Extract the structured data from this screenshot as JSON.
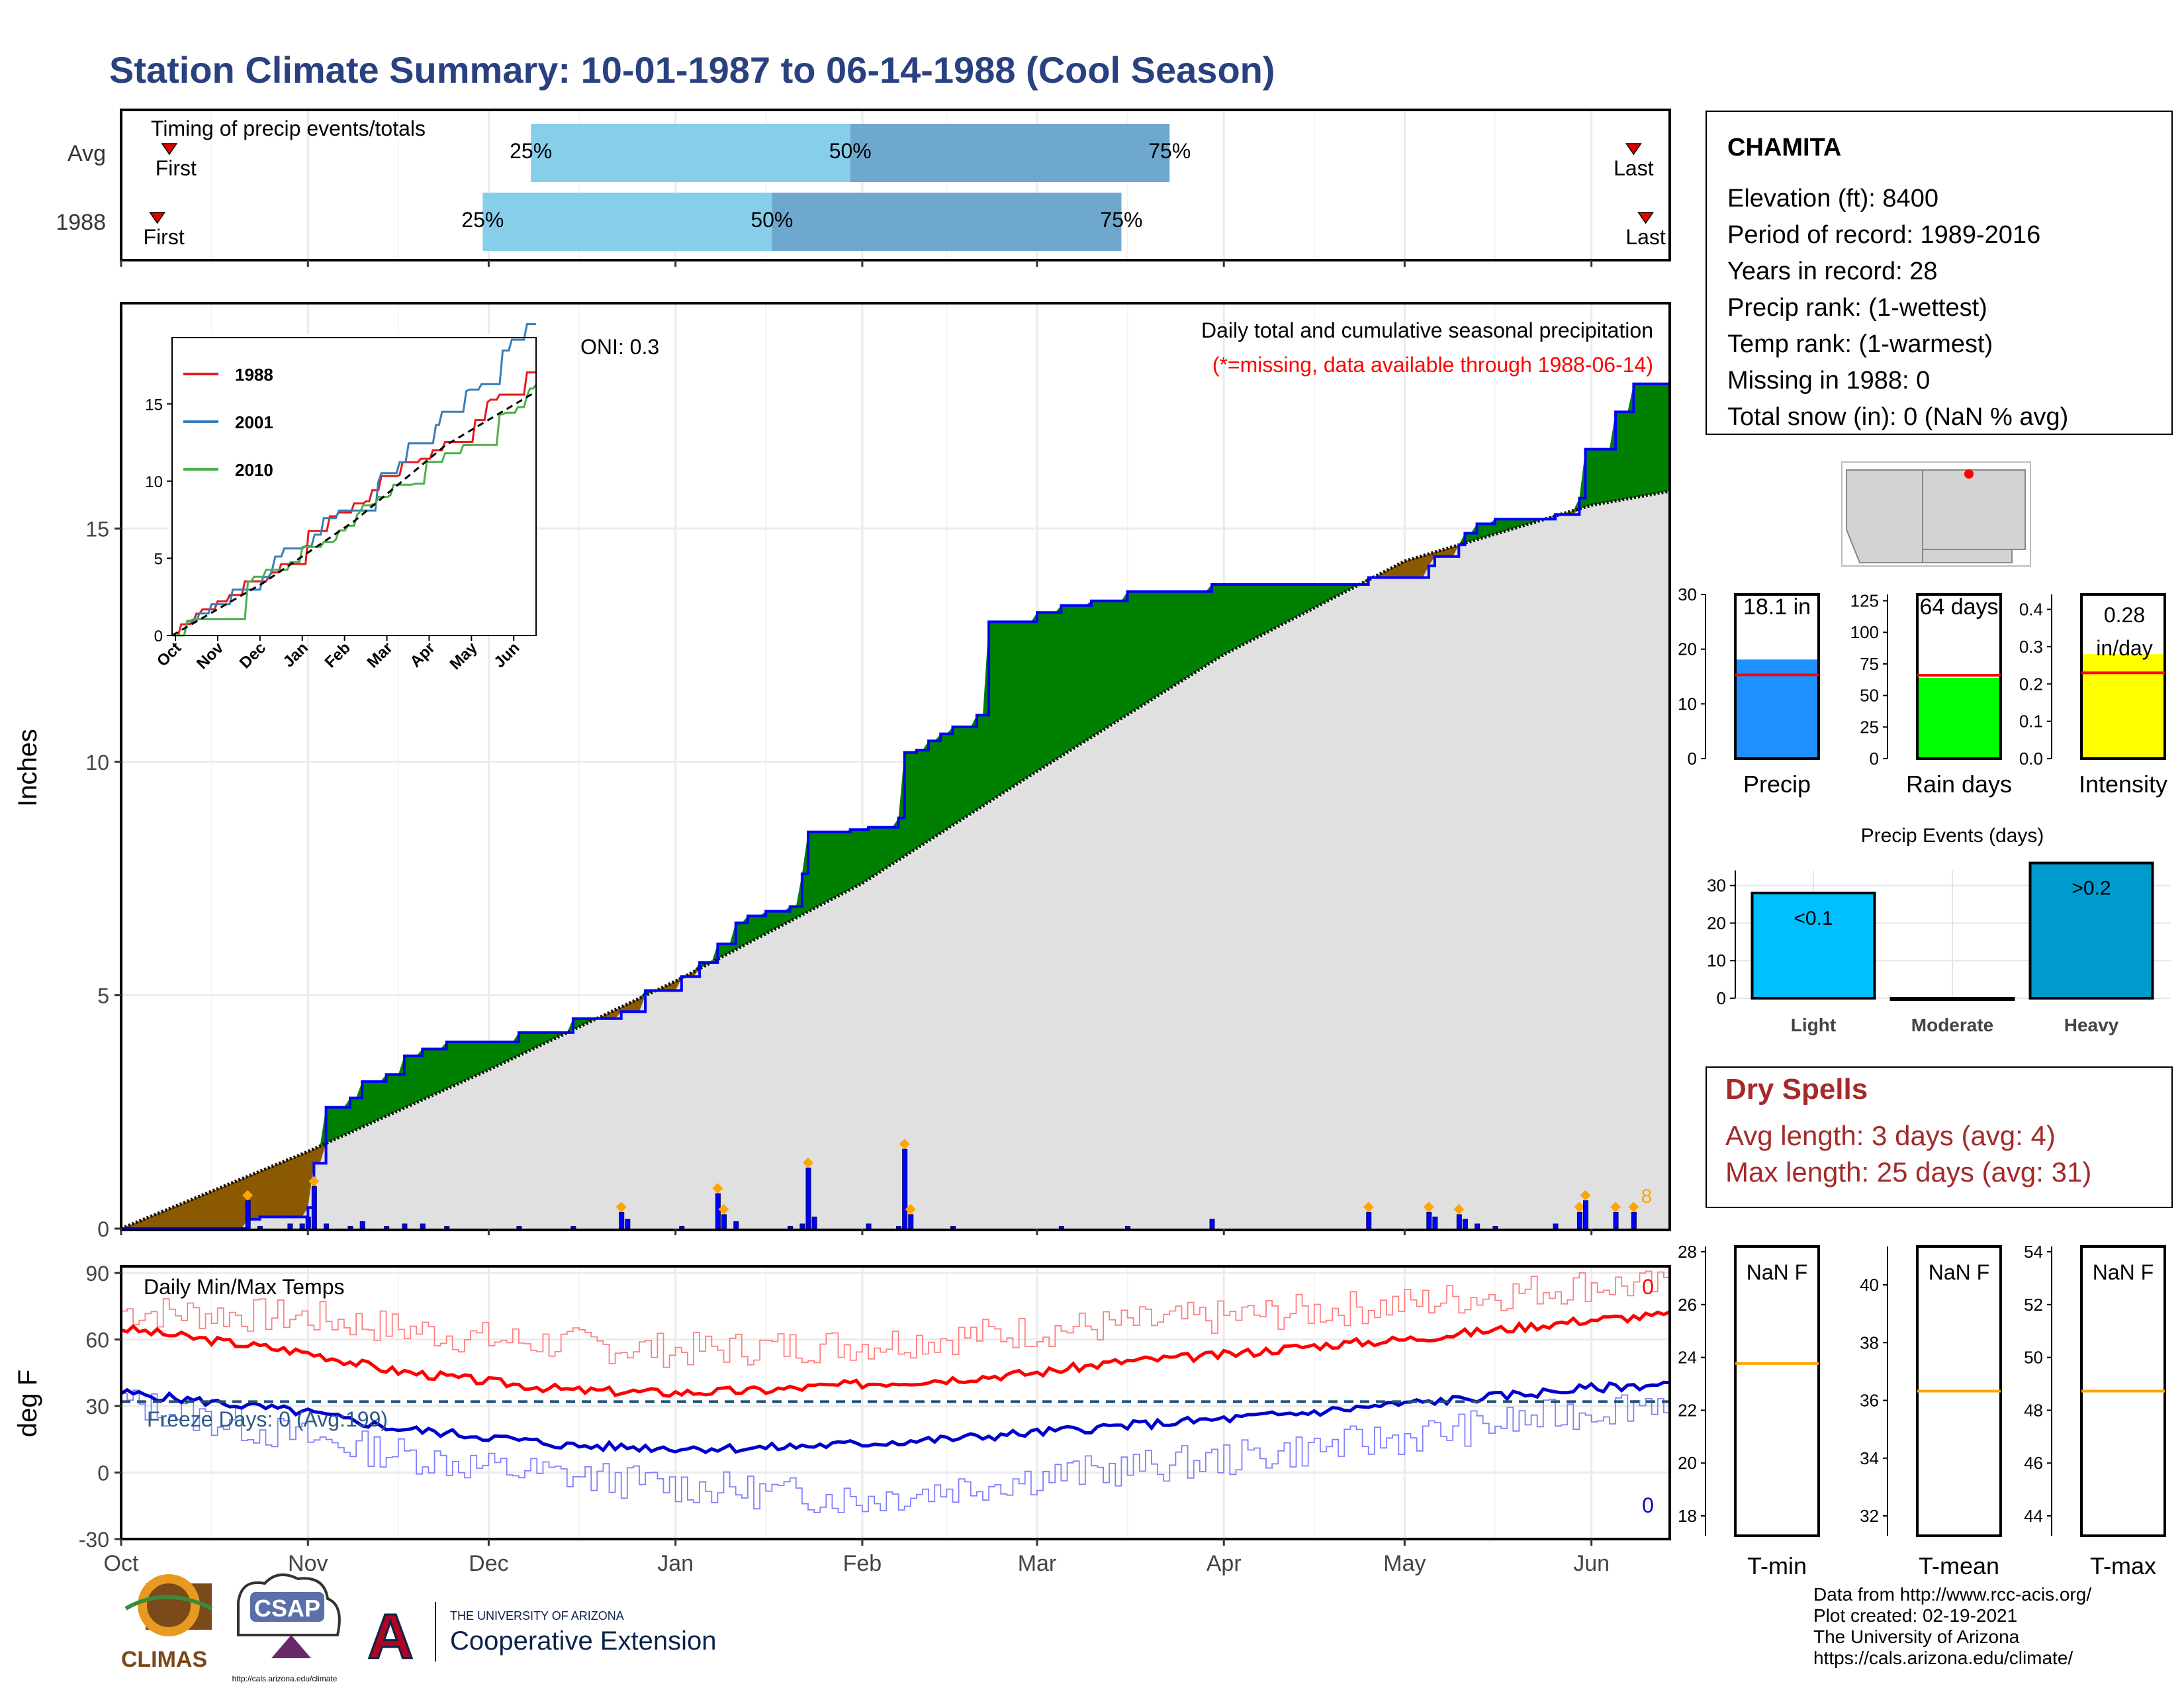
{
  "title": "Station Climate Summary: 10-01-1987 to 06-14-1988 (Cool Season)",
  "colors": {
    "title": "#2a4180",
    "precip_bar": "#0000ff",
    "excess": "#008000",
    "deficit": "#8b5a00",
    "avg_area": "#e0e0e0",
    "tmax": "#ff0000",
    "tmin": "#0000cc",
    "dry": "#a52a2a",
    "light_blue": "#87ceeb",
    "mid_blue": "#6fa8cf",
    "orange": "#ffa500"
  },
  "month_labels": [
    "Oct",
    "Nov",
    "Dec",
    "Jan",
    "Feb",
    "Mar",
    "Apr",
    "May",
    "Jun"
  ],
  "timing": {
    "title": "Timing of precip events/totals",
    "row_labels": [
      "Avg",
      "1988"
    ],
    "pct_labels": [
      "25%",
      "50%",
      "75%"
    ],
    "first_label": "First",
    "last_label": "Last",
    "avg": {
      "first": "1987-10-09",
      "p25": "1987-12-08",
      "p50": "1988-01-30",
      "p75": "1988-03-23",
      "last": "1988-06-08"
    },
    "yr": {
      "first": "1987-10-07",
      "p25": "1987-11-30",
      "p50": "1988-01-17",
      "p75": "1988-03-15",
      "last": "1988-06-10"
    }
  },
  "precip_panel": {
    "ylabel": "Inches",
    "yticks": [
      "0",
      "5",
      "10",
      "15"
    ],
    "ylim": [
      0,
      19.8
    ],
    "oni": "ONI: 0.3",
    "heading": "Daily total and cumulative seasonal precipitation",
    "missing_note": "(*=missing, data available through 1988-06-14)",
    "count_label": "8"
  },
  "inset": {
    "legend": [
      "1988",
      "2001",
      "2010"
    ],
    "yticks": [
      "0",
      "5",
      "10",
      "15"
    ],
    "xticks": [
      "Oct",
      "Nov",
      "Dec",
      "Jan",
      "Feb",
      "Mar",
      "Apr",
      "May",
      "Jun"
    ],
    "series_colors": [
      "#e41a1c",
      "#377eb8",
      "#4daf4a"
    ]
  },
  "temp_panel": {
    "ylabel": "deg F",
    "title": "Daily Min/Max Temps",
    "yticks": [
      "90",
      "60",
      "30",
      "0",
      "-30"
    ],
    "freeze_label": "Freeze Days: 0 (Avg:199)",
    "max_count": "0",
    "min_count": "0"
  },
  "station": {
    "name": "CHAMITA",
    "lines": [
      "Elevation (ft): 8400",
      "Period of record: 1989-2016",
      "Years in record: 28",
      "Precip rank:  (1-wettest)",
      "Temp rank:  (1-warmest)",
      "Missing in 1988: 0",
      "Total snow (in): 0 (NaN % avg)"
    ]
  },
  "summary_bars": {
    "precip": {
      "label": "Precip",
      "value_label": "18.1 in",
      "value": 18.1,
      "avg": 15.3,
      "yticks": [
        "0",
        "10",
        "20",
        "30"
      ],
      "ymax": 30,
      "color": "#1e90ff"
    },
    "rain_days": {
      "label": "Rain days",
      "value_label": "64 days",
      "value": 64,
      "avg": 66,
      "yticks": [
        "0",
        "25",
        "50",
        "75",
        "100",
        "125"
      ],
      "ymax": 130,
      "color": "#00ff00"
    },
    "intensity": {
      "label": "Intensity",
      "value_label": "0.28",
      "value_unit": "in/day",
      "value": 0.28,
      "avg": 0.23,
      "yticks": [
        "0.0",
        "0.1",
        "0.2",
        "0.3",
        "0.4"
      ],
      "ymax": 0.44,
      "color": "#ffff00"
    }
  },
  "events": {
    "title": "Precip Events (days)",
    "categories": [
      "Light",
      "Moderate",
      "Heavy"
    ],
    "values": [
      28,
      0,
      36
    ],
    "labels": [
      "<0.1",
      "",
      ">0.2"
    ],
    "colors": [
      "#00bfff",
      "#1f78b4",
      "#009acd"
    ],
    "yticks": [
      "0",
      "10",
      "20",
      "30"
    ]
  },
  "dry_spells": {
    "title": "Dry Spells",
    "avg_line": "Avg length: 3 days (avg: 4)",
    "max_line": "Max length: 25 days (avg: 31)"
  },
  "temp_boxes": [
    {
      "label": "T-min",
      "value": "NaN F",
      "yticks": [
        "18",
        "20",
        "22",
        "24",
        "26",
        "28"
      ],
      "avg_pos": 0.6
    },
    {
      "label": "T-mean",
      "value": "NaN F",
      "yticks": [
        "32",
        "34",
        "36",
        "38",
        "40"
      ],
      "avg_pos": 0.5
    },
    {
      "label": "T-max",
      "value": "NaN F",
      "yticks": [
        "44",
        "46",
        "48",
        "50",
        "52",
        "54"
      ],
      "avg_pos": 0.5
    }
  ],
  "credits": [
    "Data from http://www.rcc-acis.org/",
    "Plot created: 02-19-2021",
    "The University of Arizona",
    "https://cals.arizona.edu/climate/"
  ],
  "logos": {
    "climas": "CLIMAS",
    "csap": "CSAP",
    "csap_url": "http://cals.arizona.edu/climate",
    "ua_small": "THE UNIVERSITY OF ARIZONA",
    "ua_big": "Cooperative Extension",
    "ua_letter": "A"
  },
  "chart_data": [
    {
      "type": "area",
      "title": "Daily total and cumulative seasonal precipitation",
      "ylabel": "Inches",
      "ylim": [
        0,
        19.8
      ],
      "x_range": [
        "1987-10-01",
        "1988-06-14"
      ],
      "observed_cumulative_steps": [
        {
          "date": "1987-10-01",
          "value": 0.0
        },
        {
          "date": "1987-10-22",
          "value": 0.2
        },
        {
          "date": "1987-10-24",
          "value": 0.25
        },
        {
          "date": "1987-11-01",
          "value": 0.45
        },
        {
          "date": "1987-11-02",
          "value": 1.4
        },
        {
          "date": "1987-11-04",
          "value": 2.6
        },
        {
          "date": "1987-11-08",
          "value": 2.8
        },
        {
          "date": "1987-11-10",
          "value": 3.15
        },
        {
          "date": "1987-11-14",
          "value": 3.3
        },
        {
          "date": "1987-11-17",
          "value": 3.7
        },
        {
          "date": "1987-11-20",
          "value": 3.85
        },
        {
          "date": "1987-11-24",
          "value": 4.0
        },
        {
          "date": "1987-12-06",
          "value": 4.2
        },
        {
          "date": "1987-12-15",
          "value": 4.5
        },
        {
          "date": "1987-12-23",
          "value": 4.65
        },
        {
          "date": "1987-12-27",
          "value": 5.1
        },
        {
          "date": "1988-01-02",
          "value": 5.4
        },
        {
          "date": "1988-01-05",
          "value": 5.7
        },
        {
          "date": "1988-01-08",
          "value": 6.1
        },
        {
          "date": "1988-01-11",
          "value": 6.55
        },
        {
          "date": "1988-01-13",
          "value": 6.7
        },
        {
          "date": "1988-01-16",
          "value": 6.8
        },
        {
          "date": "1988-01-20",
          "value": 6.9
        },
        {
          "date": "1988-01-22",
          "value": 7.6
        },
        {
          "date": "1988-01-23",
          "value": 8.5
        },
        {
          "date": "1988-01-26",
          "value": 8.5
        },
        {
          "date": "1988-01-30",
          "value": 8.55
        },
        {
          "date": "1988-02-02",
          "value": 8.6
        },
        {
          "date": "1988-02-07",
          "value": 8.8
        },
        {
          "date": "1988-02-08",
          "value": 10.2
        },
        {
          "date": "1988-02-10",
          "value": 10.25
        },
        {
          "date": "1988-02-12",
          "value": 10.45
        },
        {
          "date": "1988-02-14",
          "value": 10.6
        },
        {
          "date": "1988-02-16",
          "value": 10.75
        },
        {
          "date": "1988-02-20",
          "value": 11.0
        },
        {
          "date": "1988-02-22",
          "value": 13.0
        },
        {
          "date": "1988-03-01",
          "value": 13.2
        },
        {
          "date": "1988-03-05",
          "value": 13.35
        },
        {
          "date": "1988-03-10",
          "value": 13.45
        },
        {
          "date": "1988-03-16",
          "value": 13.65
        },
        {
          "date": "1988-03-30",
          "value": 13.8
        },
        {
          "date": "1988-04-25",
          "value": 13.95
        },
        {
          "date": "1988-05-05",
          "value": 14.2
        },
        {
          "date": "1988-05-06",
          "value": 14.4
        },
        {
          "date": "1988-05-10",
          "value": 14.65
        },
        {
          "date": "1988-05-11",
          "value": 14.9
        },
        {
          "date": "1988-05-13",
          "value": 15.1
        },
        {
          "date": "1988-05-16",
          "value": 15.2
        },
        {
          "date": "1988-05-26",
          "value": 15.3
        },
        {
          "date": "1988-05-30",
          "value": 15.65
        },
        {
          "date": "1988-05-31",
          "value": 16.7
        },
        {
          "date": "1988-06-05",
          "value": 17.5
        },
        {
          "date": "1988-06-08",
          "value": 18.1
        },
        {
          "date": "1988-06-14",
          "value": 18.1
        }
      ],
      "average_cumulative": [
        {
          "date": "1987-10-01",
          "value": 0.0
        },
        {
          "date": "1987-11-01",
          "value": 1.65
        },
        {
          "date": "1987-12-01",
          "value": 3.4
        },
        {
          "date": "1988-01-01",
          "value": 5.3
        },
        {
          "date": "1988-02-01",
          "value": 7.4
        },
        {
          "date": "1988-03-01",
          "value": 9.8
        },
        {
          "date": "1988-04-01",
          "value": 12.3
        },
        {
          "date": "1988-05-01",
          "value": 14.3
        },
        {
          "date": "1988-06-01",
          "value": 15.5
        },
        {
          "date": "1988-06-14",
          "value": 15.8
        }
      ],
      "daily_precip": [
        {
          "date": "1987-10-22",
          "value": 0.6
        },
        {
          "date": "1987-10-24",
          "value": 0.05
        },
        {
          "date": "1987-10-29",
          "value": 0.1
        },
        {
          "date": "1987-10-31",
          "value": 0.1
        },
        {
          "date": "1987-11-01",
          "value": 0.25
        },
        {
          "date": "1987-11-02",
          "value": 0.9
        },
        {
          "date": "1987-11-04",
          "value": 0.1
        },
        {
          "date": "1987-11-08",
          "value": 0.05
        },
        {
          "date": "1987-11-10",
          "value": 0.15
        },
        {
          "date": "1987-11-14",
          "value": 0.05
        },
        {
          "date": "1987-11-17",
          "value": 0.1
        },
        {
          "date": "1987-11-20",
          "value": 0.1
        },
        {
          "date": "1987-11-24",
          "value": 0.05
        },
        {
          "date": "1987-12-06",
          "value": 0.05
        },
        {
          "date": "1987-12-15",
          "value": 0.05
        },
        {
          "date": "1987-12-23",
          "value": 0.35
        },
        {
          "date": "1987-12-24",
          "value": 0.2
        },
        {
          "date": "1988-01-02",
          "value": 0.05
        },
        {
          "date": "1988-01-08",
          "value": 0.75
        },
        {
          "date": "1988-01-09",
          "value": 0.3
        },
        {
          "date": "1988-01-11",
          "value": 0.15
        },
        {
          "date": "1988-01-20",
          "value": 0.05
        },
        {
          "date": "1988-01-22",
          "value": 0.1
        },
        {
          "date": "1988-01-23",
          "value": 1.3
        },
        {
          "date": "1988-01-24",
          "value": 0.25
        },
        {
          "date": "1988-02-02",
          "value": 0.1
        },
        {
          "date": "1988-02-07",
          "value": 0.05
        },
        {
          "date": "1988-02-08",
          "value": 1.7
        },
        {
          "date": "1988-02-09",
          "value": 0.3
        },
        {
          "date": "1988-02-16",
          "value": 0.05
        },
        {
          "date": "1988-03-05",
          "value": 0.05
        },
        {
          "date": "1988-03-16",
          "value": 0.05
        },
        {
          "date": "1988-03-30",
          "value": 0.2
        },
        {
          "date": "1988-04-25",
          "value": 0.35
        },
        {
          "date": "1988-05-05",
          "value": 0.35
        },
        {
          "date": "1988-05-06",
          "value": 0.25
        },
        {
          "date": "1988-05-10",
          "value": 0.3
        },
        {
          "date": "1988-05-11",
          "value": 0.2
        },
        {
          "date": "1988-05-13",
          "value": 0.1
        },
        {
          "date": "1988-05-16",
          "value": 0.05
        },
        {
          "date": "1988-05-26",
          "value": 0.1
        },
        {
          "date": "1988-05-30",
          "value": 0.35
        },
        {
          "date": "1988-05-31",
          "value": 0.6
        },
        {
          "date": "1988-06-05",
          "value": 0.35
        },
        {
          "date": "1988-06-08",
          "value": 0.35
        }
      ]
    },
    {
      "type": "line",
      "title": "Daily Min/Max Temps",
      "ylabel": "deg F",
      "ylim": [
        -30,
        93
      ],
      "freeze_line": 32,
      "series": [
        {
          "name": "avg max",
          "points": [
            [
              "1987-10-01",
              65
            ],
            [
              "1987-10-15",
              60
            ],
            [
              "1987-11-01",
              54
            ],
            [
              "1987-11-15",
              46
            ],
            [
              "1987-12-01",
              41
            ],
            [
              "1987-12-15",
              37
            ],
            [
              "1988-01-01",
              36
            ],
            [
              "1988-01-15",
              37
            ],
            [
              "1988-02-01",
              40
            ],
            [
              "1988-02-15",
              42
            ],
            [
              "1988-03-01",
              45
            ],
            [
              "1988-03-15",
              50
            ],
            [
              "1988-04-01",
              53
            ],
            [
              "1988-04-15",
              57
            ],
            [
              "1988-05-01",
              60
            ],
            [
              "1988-05-15",
              64
            ],
            [
              "1988-06-01",
              69
            ],
            [
              "1988-06-14",
              71
            ]
          ]
        },
        {
          "name": "avg min",
          "points": [
            [
              "1987-10-01",
              36
            ],
            [
              "1987-10-15",
              32
            ],
            [
              "1987-11-01",
              27
            ],
            [
              "1987-11-15",
              20
            ],
            [
              "1987-12-01",
              16
            ],
            [
              "1987-12-15",
              12
            ],
            [
              "1988-01-01",
              11
            ],
            [
              "1988-01-15",
              11
            ],
            [
              "1988-02-01",
              13
            ],
            [
              "1988-02-15",
              15
            ],
            [
              "1988-03-01",
              18
            ],
            [
              "1988-03-15",
              21
            ],
            [
              "1988-04-01",
              24
            ],
            [
              "1988-04-15",
              27
            ],
            [
              "1988-05-01",
              31
            ],
            [
              "1988-05-15",
              34
            ],
            [
              "1988-06-01",
              38
            ],
            [
              "1988-06-14",
              40
            ]
          ]
        },
        {
          "name": "daily max envelope",
          "points": [
            [
              "1987-10-01",
              73
            ],
            [
              "1987-11-01",
              70
            ],
            [
              "1987-12-01",
              60
            ],
            [
              "1988-01-01",
              55
            ],
            [
              "1988-02-01",
              58
            ],
            [
              "1988-03-01",
              64
            ],
            [
              "1988-04-01",
              70
            ],
            [
              "1988-05-01",
              76
            ],
            [
              "1988-06-01",
              85
            ],
            [
              "1988-06-14",
              83
            ]
          ]
        },
        {
          "name": "daily min envelope",
          "points": [
            [
              "1987-10-01",
              32
            ],
            [
              "1987-11-01",
              15
            ],
            [
              "1987-12-01",
              2
            ],
            [
              "1988-01-01",
              -6
            ],
            [
              "1988-02-01",
              -12
            ],
            [
              "1988-03-01",
              -2
            ],
            [
              "1988-04-01",
              6
            ],
            [
              "1988-05-01",
              16
            ],
            [
              "1988-06-01",
              28
            ],
            [
              "1988-06-14",
              34
            ]
          ]
        }
      ]
    },
    {
      "type": "bar",
      "title": "Precip Events (days)",
      "categories": [
        "Light",
        "Moderate",
        "Heavy"
      ],
      "values": [
        28,
        0,
        36
      ]
    }
  ]
}
